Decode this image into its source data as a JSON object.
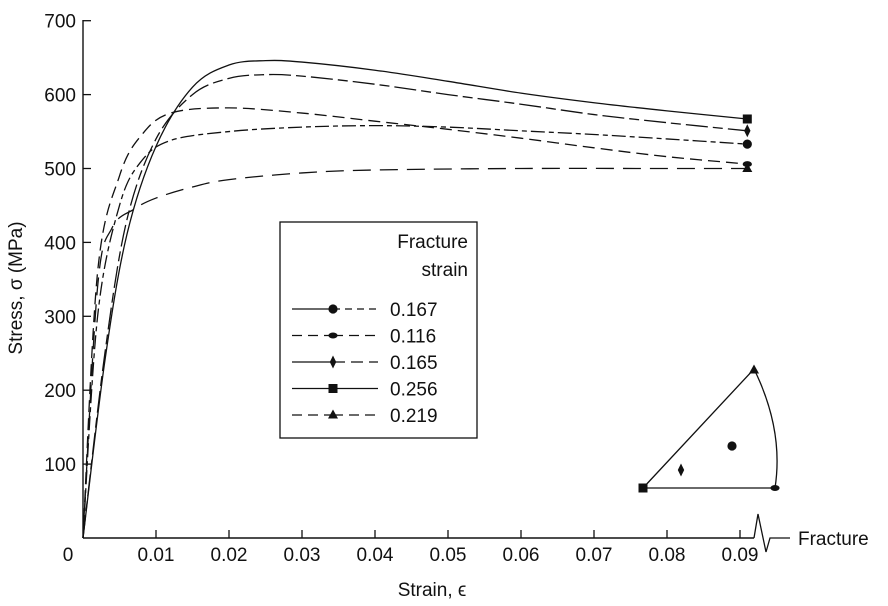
{
  "chart_data": {
    "type": "line",
    "xlabel": "Strain, ϵ",
    "ylabel": "Stress, σ (MPa)",
    "xlim": [
      0,
      0.095
    ],
    "ylim": [
      0,
      700
    ],
    "xticks": [
      "0",
      "0.01",
      "0.02",
      "0.03",
      "0.04",
      "0.05",
      "0.06",
      "0.07",
      "0.08",
      "0.09"
    ],
    "yticks": [
      "100",
      "200",
      "300",
      "400",
      "500",
      "600",
      "700"
    ],
    "legend": {
      "title_line1": "Fracture",
      "title_line2": "strain",
      "position": "center"
    },
    "series": [
      {
        "name": "0.167",
        "marker": "circle",
        "line": "solid-short-dash",
        "x": [
          0,
          0.002,
          0.005,
          0.008,
          0.012,
          0.02,
          0.03,
          0.04,
          0.05,
          0.06,
          0.07,
          0.08,
          0.091
        ],
        "y": [
          0,
          300,
          450,
          510,
          538,
          550,
          556,
          558,
          556,
          551,
          546,
          540,
          533
        ]
      },
      {
        "name": "0.116",
        "marker": "oval",
        "line": "long-dash",
        "x": [
          0,
          0.002,
          0.005,
          0.008,
          0.012,
          0.02,
          0.03,
          0.04,
          0.05,
          0.06,
          0.07,
          0.08,
          0.091
        ],
        "y": [
          0,
          360,
          490,
          545,
          575,
          582,
          575,
          564,
          553,
          541,
          528,
          516,
          506
        ]
      },
      {
        "name": "0.165",
        "marker": "diamond",
        "line": "solid-long-dash",
        "x": [
          0,
          0.003,
          0.006,
          0.01,
          0.015,
          0.02,
          0.025,
          0.03,
          0.04,
          0.05,
          0.06,
          0.07,
          0.08,
          0.091
        ],
        "y": [
          0,
          250,
          430,
          540,
          600,
          622,
          627,
          625,
          614,
          600,
          587,
          573,
          562,
          551
        ]
      },
      {
        "name": "0.256",
        "marker": "square",
        "line": "solid",
        "x": [
          0,
          0.003,
          0.006,
          0.01,
          0.015,
          0.02,
          0.025,
          0.03,
          0.04,
          0.05,
          0.06,
          0.07,
          0.08,
          0.091
        ],
        "y": [
          0,
          240,
          410,
          530,
          610,
          640,
          646,
          644,
          633,
          618,
          602,
          589,
          578,
          567
        ]
      },
      {
        "name": "0.219",
        "marker": "triangle",
        "line": "long-dash-gap",
        "x": [
          0,
          0.002,
          0.004,
          0.007,
          0.01,
          0.015,
          0.02,
          0.03,
          0.04,
          0.06,
          0.08,
          0.091
        ],
        "y": [
          0,
          340,
          420,
          445,
          460,
          475,
          485,
          494,
          498,
          500,
          500,
          500
        ]
      }
    ],
    "inset": {
      "description_label": "Fracture",
      "markers": [
        "square",
        "diamond",
        "circle",
        "triangle",
        "oval"
      ]
    }
  }
}
